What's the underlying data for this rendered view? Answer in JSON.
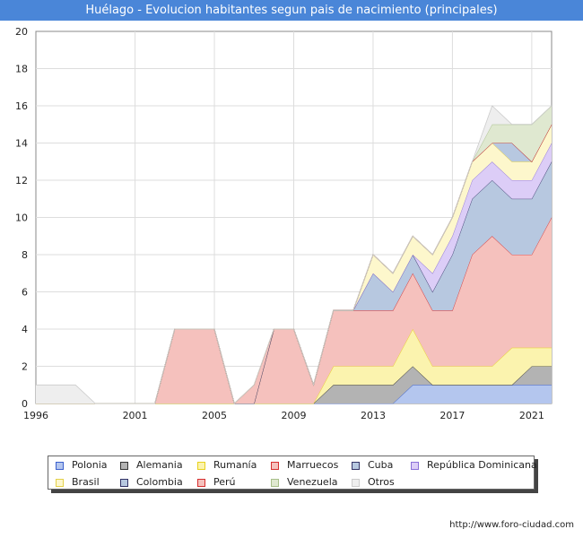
{
  "header": {
    "title": "Huélago - Evolucion habitantes segun pais de nacimiento (principales)"
  },
  "footer": {
    "url": "http://www.foro-ciudad.com"
  },
  "chart_data": {
    "type": "area",
    "stacked": true,
    "x": [
      1996,
      1997,
      1998,
      1999,
      2000,
      2001,
      2002,
      2003,
      2004,
      2005,
      2006,
      2007,
      2008,
      2009,
      2010,
      2011,
      2012,
      2013,
      2014,
      2015,
      2016,
      2017,
      2018,
      2019,
      2020,
      2021,
      2022
    ],
    "xticks": [
      1996,
      2001,
      2005,
      2009,
      2013,
      2017,
      2021
    ],
    "ylim": [
      0,
      20
    ],
    "yticks": [
      0,
      2,
      4,
      6,
      8,
      10,
      12,
      14,
      16,
      18,
      20
    ],
    "grid": true,
    "legend_position": "bottom",
    "series": [
      {
        "name": "Polonia",
        "fill": "#b4c6ee",
        "stroke": "#3a5fcd",
        "values": [
          0,
          0,
          0,
          0,
          0,
          0,
          0,
          0,
          0,
          0,
          0,
          0,
          0,
          0,
          0,
          0,
          0,
          0,
          0,
          1,
          1,
          1,
          1,
          1,
          1,
          1,
          1
        ]
      },
      {
        "name": "Alemania",
        "fill": "#b3b3b3",
        "stroke": "#333333",
        "values": [
          0,
          0,
          0,
          0,
          0,
          0,
          0,
          0,
          0,
          0,
          0,
          0,
          0,
          0,
          0,
          1,
          1,
          1,
          1,
          1,
          0,
          0,
          0,
          0,
          0,
          1,
          1
        ]
      },
      {
        "name": "Rumanía",
        "fill": "#fbf3ae",
        "stroke": "#e8d21c",
        "values": [
          0,
          0,
          0,
          0,
          0,
          0,
          0,
          0,
          0,
          0,
          0,
          0,
          0,
          0,
          0,
          1,
          1,
          1,
          1,
          2,
          1,
          1,
          1,
          1,
          2,
          1,
          1
        ]
      },
      {
        "name": "Marruecos",
        "fill": "#f5c1bd",
        "stroke": "#d62f2f",
        "values": [
          0,
          0,
          0,
          0,
          0,
          0,
          0,
          4,
          4,
          4,
          0,
          0,
          4,
          4,
          1,
          3,
          3,
          3,
          3,
          3,
          3,
          3,
          6,
          7,
          5,
          5,
          7
        ]
      },
      {
        "name": "Cuba",
        "fill": "#b7c8e0",
        "stroke": "#333366",
        "values": [
          0,
          0,
          0,
          0,
          0,
          0,
          0,
          0,
          0,
          0,
          0,
          0,
          0,
          0,
          0,
          0,
          0,
          2,
          1,
          1,
          1,
          3,
          3,
          3,
          3,
          3,
          3
        ]
      },
      {
        "name": "República Dominicana",
        "fill": "#dccdf7",
        "stroke": "#8a6fd8",
        "values": [
          0,
          0,
          0,
          0,
          0,
          0,
          0,
          0,
          0,
          0,
          0,
          0,
          0,
          0,
          0,
          0,
          0,
          0,
          0,
          0,
          1,
          1,
          1,
          1,
          1,
          1,
          1
        ]
      },
      {
        "name": "Brasil",
        "fill": "#fdf7cc",
        "stroke": "#e3d04a",
        "values": [
          0,
          0,
          0,
          0,
          0,
          0,
          0,
          0,
          0,
          0,
          0,
          0,
          0,
          0,
          0,
          0,
          0,
          1,
          1,
          1,
          1,
          1,
          1,
          1,
          1,
          1,
          1
        ]
      },
      {
        "name": "Colombia",
        "fill": "#b7c8e0",
        "stroke": "#333366",
        "values": [
          0,
          0,
          0,
          0,
          0,
          0,
          0,
          0,
          0,
          0,
          0,
          0,
          0,
          0,
          0,
          0,
          0,
          0,
          0,
          0,
          0,
          0,
          0,
          0,
          1,
          0,
          0
        ]
      },
      {
        "name": "Perú",
        "fill": "#f5c1bd",
        "stroke": "#d62f2f",
        "values": [
          0,
          0,
          0,
          0,
          0,
          0,
          0,
          0,
          0,
          0,
          0,
          1,
          0,
          0,
          0,
          0,
          0,
          0,
          0,
          0,
          0,
          0,
          0,
          0,
          0,
          0,
          0
        ]
      },
      {
        "name": "Venezuela",
        "fill": "#dfe8d0",
        "stroke": "#a8bf8a",
        "values": [
          0,
          0,
          0,
          0,
          0,
          0,
          0,
          0,
          0,
          0,
          0,
          0,
          0,
          0,
          0,
          0,
          0,
          0,
          0,
          0,
          0,
          0,
          0,
          1,
          1,
          2,
          1
        ]
      },
      {
        "name": "Otros",
        "fill": "#eeeeee",
        "stroke": "#cccccc",
        "values": [
          1,
          1,
          1,
          0,
          0,
          0,
          0,
          0,
          0,
          0,
          0,
          0,
          0,
          0,
          0,
          0,
          0,
          0,
          0,
          0,
          0,
          0,
          0,
          1,
          0,
          0,
          0
        ]
      }
    ]
  }
}
